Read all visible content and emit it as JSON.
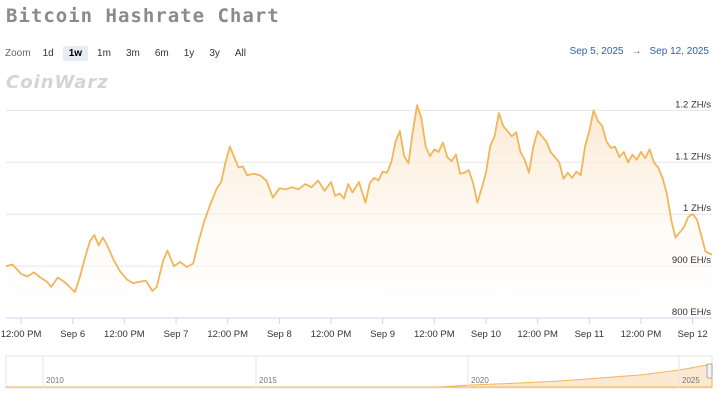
{
  "title": "Bitcoin Hashrate Chart",
  "zoom": {
    "label": "Zoom",
    "buttons": [
      "1d",
      "1w",
      "1m",
      "3m",
      "6m",
      "1y",
      "3y",
      "All"
    ],
    "selected": "1w"
  },
  "range": {
    "from": "Sep 5, 2025",
    "arrow": "→",
    "to": "Sep 12, 2025"
  },
  "watermark": "CoinWarz",
  "colors": {
    "line": "#f0b65a",
    "fill_top": "#fbe6cc",
    "navigator_fill": "#fbe9d2",
    "range_text": "#335cad"
  },
  "chart_data": {
    "type": "area",
    "y_unit": "EH/s",
    "ylim": [
      800,
      1220
    ],
    "yticks": [
      {
        "value": 800,
        "label": "800 EH/s"
      },
      {
        "value": 900,
        "label": "900 EH/s"
      },
      {
        "value": 1000,
        "label": "1 ZH/s"
      },
      {
        "value": 1100,
        "label": "1.1 ZH/s"
      },
      {
        "value": 1200,
        "label": "1.2 ZH/s"
      }
    ],
    "xlim": [
      "Sep 5 08:30",
      "Sep 12 04:30"
    ],
    "xticks": [
      {
        "time": "Sep 5 12:00",
        "label": "12:00 PM"
      },
      {
        "time": "Sep 6 00:00",
        "label": "Sep 6"
      },
      {
        "time": "Sep 6 12:00",
        "label": "12:00 PM"
      },
      {
        "time": "Sep 7 00:00",
        "label": "Sep 7"
      },
      {
        "time": "Sep 7 12:00",
        "label": "12:00 PM"
      },
      {
        "time": "Sep 8 00:00",
        "label": "Sep 8"
      },
      {
        "time": "Sep 8 12:00",
        "label": "12:00 PM"
      },
      {
        "time": "Sep 9 00:00",
        "label": "Sep 9"
      },
      {
        "time": "Sep 9 12:00",
        "label": "12:00 PM"
      },
      {
        "time": "Sep 10 00:00",
        "label": "Sep 10"
      },
      {
        "time": "Sep 10 12:00",
        "label": "12:00 PM"
      },
      {
        "time": "Sep 11 00:00",
        "label": "Sep 11"
      },
      {
        "time": "Sep 11 12:00",
        "label": "12:00 PM"
      },
      {
        "time": "Sep 12 00:00",
        "label": "Sep 12"
      }
    ],
    "grid": true,
    "series": [
      {
        "points": [
          [
            "Sep 5 08:30",
            900
          ],
          [
            "Sep 5 10:00",
            903
          ],
          [
            "Sep 5 12:00",
            885
          ],
          [
            "Sep 5 13:30",
            880
          ],
          [
            "Sep 5 15:00",
            888
          ],
          [
            "Sep 5 16:30",
            878
          ],
          [
            "Sep 5 18:00",
            870
          ],
          [
            "Sep 5 19:00",
            860
          ],
          [
            "Sep 5 20:30",
            878
          ],
          [
            "Sep 5 22:00",
            870
          ],
          [
            "Sep 5 23:30",
            858
          ],
          [
            "Sep 6 00:30",
            850
          ],
          [
            "Sep 6 01:30",
            875
          ],
          [
            "Sep 6 03:00",
            920
          ],
          [
            "Sep 6 04:00",
            948
          ],
          [
            "Sep 6 05:00",
            960
          ],
          [
            "Sep 6 06:00",
            940
          ],
          [
            "Sep 6 07:00",
            955
          ],
          [
            "Sep 6 08:00",
            940
          ],
          [
            "Sep 6 09:30",
            912
          ],
          [
            "Sep 6 11:00",
            890
          ],
          [
            "Sep 6 12:30",
            875
          ],
          [
            "Sep 6 14:00",
            867
          ],
          [
            "Sep 6 15:30",
            870
          ],
          [
            "Sep 6 17:00",
            872
          ],
          [
            "Sep 6 18:30",
            852
          ],
          [
            "Sep 6 19:30",
            860
          ],
          [
            "Sep 6 21:00",
            910
          ],
          [
            "Sep 6 22:00",
            930
          ],
          [
            "Sep 6 23:30",
            900
          ],
          [
            "Sep 7 01:00",
            908
          ],
          [
            "Sep 7 02:30",
            898
          ],
          [
            "Sep 7 04:00",
            905
          ],
          [
            "Sep 7 05:00",
            940
          ],
          [
            "Sep 7 06:30",
            985
          ],
          [
            "Sep 7 08:00",
            1020
          ],
          [
            "Sep 7 09:30",
            1050
          ],
          [
            "Sep 7 10:30",
            1062
          ],
          [
            "Sep 7 11:30",
            1100
          ],
          [
            "Sep 7 12:30",
            1130
          ],
          [
            "Sep 7 13:30",
            1110
          ],
          [
            "Sep 7 14:30",
            1090
          ],
          [
            "Sep 7 15:30",
            1092
          ],
          [
            "Sep 7 16:30",
            1075
          ],
          [
            "Sep 7 18:00",
            1078
          ],
          [
            "Sep 7 19:30",
            1075
          ],
          [
            "Sep 7 21:00",
            1065
          ],
          [
            "Sep 7 22:30",
            1032
          ],
          [
            "Sep 8 00:00",
            1050
          ],
          [
            "Sep 8 01:30",
            1048
          ],
          [
            "Sep 8 03:00",
            1052
          ],
          [
            "Sep 8 04:30",
            1048
          ],
          [
            "Sep 8 06:00",
            1058
          ],
          [
            "Sep 8 07:30",
            1052
          ],
          [
            "Sep 8 09:00",
            1065
          ],
          [
            "Sep 8 10:30",
            1045
          ],
          [
            "Sep 8 12:00",
            1062
          ],
          [
            "Sep 8 13:00",
            1035
          ],
          [
            "Sep 8 14:00",
            1040
          ],
          [
            "Sep 8 15:00",
            1030
          ],
          [
            "Sep 8 16:00",
            1058
          ],
          [
            "Sep 8 17:00",
            1042
          ],
          [
            "Sep 8 18:30",
            1062
          ],
          [
            "Sep 8 20:00",
            1022
          ],
          [
            "Sep 8 21:00",
            1060
          ],
          [
            "Sep 8 22:00",
            1070
          ],
          [
            "Sep 8 23:00",
            1065
          ],
          [
            "Sep 9 00:00",
            1082
          ],
          [
            "Sep 9 01:00",
            1080
          ],
          [
            "Sep 9 02:00",
            1100
          ],
          [
            "Sep 9 03:00",
            1140
          ],
          [
            "Sep 9 04:00",
            1160
          ],
          [
            "Sep 9 05:00",
            1112
          ],
          [
            "Sep 9 06:00",
            1098
          ],
          [
            "Sep 9 07:00",
            1160
          ],
          [
            "Sep 9 08:00",
            1210
          ],
          [
            "Sep 9 09:00",
            1185
          ],
          [
            "Sep 9 10:00",
            1130
          ],
          [
            "Sep 9 11:00",
            1112
          ],
          [
            "Sep 9 12:00",
            1125
          ],
          [
            "Sep 9 13:00",
            1120
          ],
          [
            "Sep 9 14:00",
            1138
          ],
          [
            "Sep 9 15:00",
            1110
          ],
          [
            "Sep 9 16:00",
            1102
          ],
          [
            "Sep 9 17:00",
            1115
          ],
          [
            "Sep 9 18:00",
            1078
          ],
          [
            "Sep 9 19:00",
            1080
          ],
          [
            "Sep 9 20:00",
            1085
          ],
          [
            "Sep 9 21:00",
            1060
          ],
          [
            "Sep 9 22:00",
            1022
          ],
          [
            "Sep 9 23:00",
            1050
          ],
          [
            "Sep 10 00:00",
            1080
          ],
          [
            "Sep 10 01:00",
            1132
          ],
          [
            "Sep 10 02:00",
            1150
          ],
          [
            "Sep 10 03:00",
            1195
          ],
          [
            "Sep 10 04:00",
            1170
          ],
          [
            "Sep 10 05:00",
            1160
          ],
          [
            "Sep 10 06:00",
            1150
          ],
          [
            "Sep 10 07:00",
            1158
          ],
          [
            "Sep 10 08:00",
            1120
          ],
          [
            "Sep 10 09:00",
            1105
          ],
          [
            "Sep 10 10:00",
            1080
          ],
          [
            "Sep 10 11:00",
            1130
          ],
          [
            "Sep 10 12:00",
            1160
          ],
          [
            "Sep 10 13:00",
            1150
          ],
          [
            "Sep 10 14:00",
            1140
          ],
          [
            "Sep 10 15:00",
            1120
          ],
          [
            "Sep 10 16:00",
            1110
          ],
          [
            "Sep 10 17:00",
            1100
          ],
          [
            "Sep 10 18:00",
            1068
          ],
          [
            "Sep 10 19:00",
            1080
          ],
          [
            "Sep 10 20:00",
            1070
          ],
          [
            "Sep 10 21:00",
            1082
          ],
          [
            "Sep 10 22:00",
            1075
          ],
          [
            "Sep 10 23:00",
            1130
          ],
          [
            "Sep 11 00:00",
            1160
          ],
          [
            "Sep 11 01:00",
            1200
          ],
          [
            "Sep 11 02:00",
            1180
          ],
          [
            "Sep 11 03:00",
            1170
          ],
          [
            "Sep 11 04:00",
            1140
          ],
          [
            "Sep 11 05:00",
            1128
          ],
          [
            "Sep 11 06:00",
            1130
          ],
          [
            "Sep 11 07:00",
            1110
          ],
          [
            "Sep 11 08:00",
            1120
          ],
          [
            "Sep 11 09:00",
            1100
          ],
          [
            "Sep 11 10:00",
            1115
          ],
          [
            "Sep 11 11:00",
            1105
          ],
          [
            "Sep 11 12:00",
            1120
          ],
          [
            "Sep 11 13:00",
            1108
          ],
          [
            "Sep 11 14:00",
            1125
          ],
          [
            "Sep 11 15:00",
            1100
          ],
          [
            "Sep 11 16:00",
            1090
          ],
          [
            "Sep 11 17:00",
            1070
          ],
          [
            "Sep 11 18:00",
            1040
          ],
          [
            "Sep 11 19:00",
            990
          ],
          [
            "Sep 11 20:00",
            955
          ],
          [
            "Sep 11 21:00",
            965
          ],
          [
            "Sep 11 22:00",
            975
          ],
          [
            "Sep 11 23:00",
            995
          ],
          [
            "Sep 12 00:00",
            1000
          ],
          [
            "Sep 12 01:00",
            990
          ],
          [
            "Sep 12 02:00",
            960
          ],
          [
            "Sep 12 03:00",
            928
          ],
          [
            "Sep 12 04:30",
            922
          ]
        ]
      }
    ]
  },
  "navigator": {
    "labels": [
      "2010",
      "2015",
      "2020",
      "2025"
    ]
  }
}
